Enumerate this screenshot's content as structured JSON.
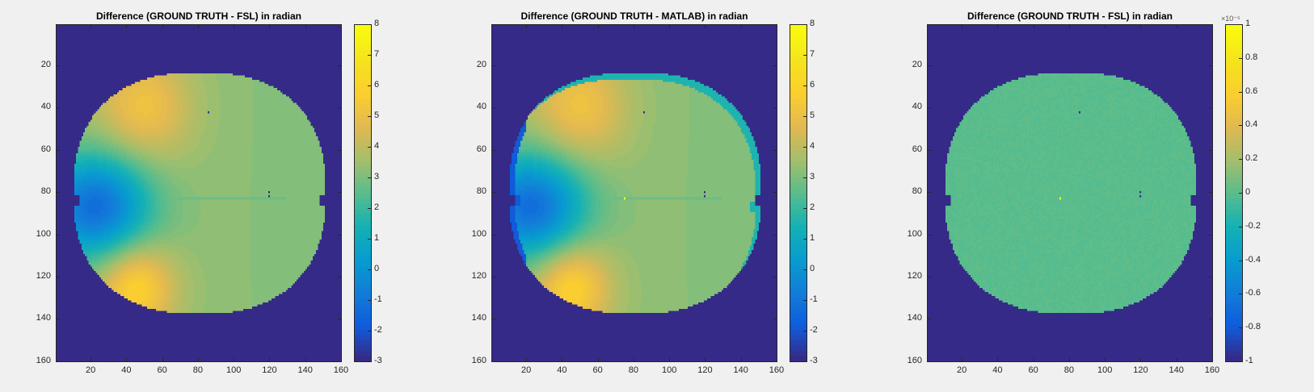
{
  "chart_data": [
    {
      "type": "heatmap",
      "title": "Difference (GROUND TRUTH - FSL) in radian",
      "colormap": "parula",
      "xlim": [
        0.5,
        160.5
      ],
      "ylim": [
        0.5,
        160.5
      ],
      "y_reversed": true,
      "xticks": [
        20,
        40,
        60,
        80,
        100,
        120,
        140,
        160
      ],
      "yticks": [
        20,
        40,
        60,
        80,
        100,
        120,
        140,
        160
      ],
      "colorbar": {
        "clim": [
          -3,
          8
        ],
        "ticks": [
          -3,
          -2,
          -1,
          0,
          1,
          2,
          3,
          4,
          5,
          6,
          7,
          8
        ],
        "exponent_label": ""
      },
      "background_value": -3,
      "colors": {
        "background": "#352a87"
      }
    },
    {
      "type": "heatmap",
      "title": "Difference (GROUND TRUTH - MATLAB) in radian",
      "colormap": "parula",
      "xlim": [
        0.5,
        160.5
      ],
      "ylim": [
        0.5,
        160.5
      ],
      "y_reversed": true,
      "xticks": [
        20,
        40,
        60,
        80,
        100,
        120,
        140,
        160
      ],
      "yticks": [
        20,
        40,
        60,
        80,
        100,
        120,
        140,
        160
      ],
      "colorbar": {
        "clim": [
          -3,
          8
        ],
        "ticks": [
          -3,
          -2,
          -1,
          0,
          1,
          2,
          3,
          4,
          5,
          6,
          7,
          8
        ],
        "exponent_label": ""
      },
      "background_value": -3,
      "colors": {
        "background": "#352a87"
      }
    },
    {
      "type": "heatmap",
      "title": "Difference (GROUND TRUTH - FSL) in radian",
      "colormap": "parula",
      "xlim": [
        0.5,
        160.5
      ],
      "ylim": [
        0.5,
        160.5
      ],
      "y_reversed": true,
      "xticks": [
        20,
        40,
        60,
        80,
        100,
        120,
        140,
        160
      ],
      "yticks": [
        20,
        40,
        60,
        80,
        100,
        120,
        140,
        160
      ],
      "colorbar": {
        "clim": [
          -1,
          1
        ],
        "ticks": [
          -1,
          -0.8,
          -0.6,
          -0.4,
          -0.2,
          0,
          0.2,
          0.4,
          0.6,
          0.8,
          1
        ],
        "exponent_label": "×10⁻⁵"
      },
      "background_value": -1,
      "colors": {
        "background": "#352a87"
      }
    }
  ]
}
